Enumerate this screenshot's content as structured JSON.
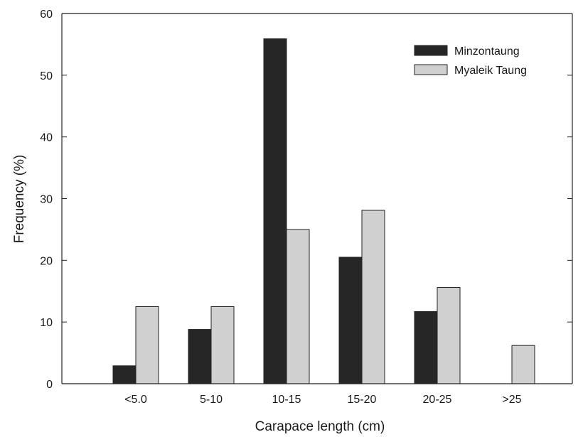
{
  "chart_data": {
    "type": "bar",
    "title": "",
    "xlabel": "Carapace length (cm)",
    "ylabel": "Frequency (%)",
    "categories": [
      "<5.0",
      "5-10",
      "10-15",
      "15-20",
      "20-25",
      ">25"
    ],
    "ylim": [
      0,
      60
    ],
    "yticks": [
      0,
      10,
      20,
      30,
      40,
      50,
      60
    ],
    "grid": false,
    "legend_position": "top-right",
    "series": [
      {
        "name": "Minzontaung",
        "color": "#262626",
        "values": [
          2.9,
          8.8,
          55.9,
          20.5,
          11.7,
          0
        ]
      },
      {
        "name": "Myaleik Taung",
        "color": "#d0d0d0",
        "values": [
          12.5,
          12.5,
          25.0,
          28.1,
          15.6,
          6.2
        ]
      }
    ]
  }
}
